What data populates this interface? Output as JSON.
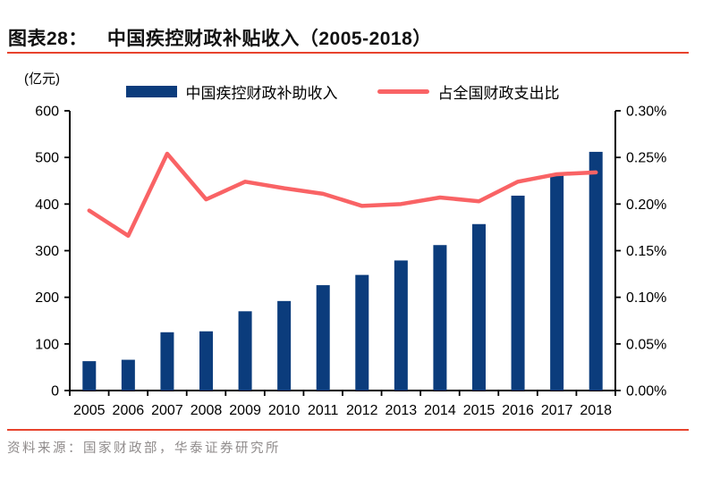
{
  "header": {
    "label": "图表28：",
    "title": "中国疾控财政补贴收入（2005-2018）"
  },
  "chart": {
    "unit_label": "(亿元)",
    "legend": [
      {
        "label": "中国疾控财政补助收入",
        "swatch": "bar"
      },
      {
        "label": "占全国财政支出比",
        "swatch": "line"
      }
    ]
  },
  "source": "资料来源：国家财政部，华泰证券研究所",
  "colors": {
    "bar": "#0b3c7c",
    "line": "#f96365",
    "rule": "#e8432d",
    "axis": "#000000",
    "tick_text": "#000000",
    "source_text": "#8f8b8b"
  },
  "chart_data": {
    "type": "bar+line",
    "title": "中国疾控财政补贴收入（2005-2018）",
    "categories": [
      "2005",
      "2006",
      "2007",
      "2008",
      "2009",
      "2010",
      "2011",
      "2012",
      "2013",
      "2014",
      "2015",
      "2016",
      "2017",
      "2018"
    ],
    "series": [
      {
        "name": "中国疾控财政补助收入",
        "type": "bar",
        "yaxis": "left",
        "unit": "亿元",
        "values": [
          63,
          66,
          125,
          127,
          170,
          192,
          226,
          248,
          279,
          312,
          357,
          418,
          465,
          512
        ]
      },
      {
        "name": "占全国财政支出比",
        "type": "line",
        "yaxis": "right",
        "unit": "%",
        "values": [
          0.193,
          0.166,
          0.254,
          0.205,
          0.224,
          0.217,
          0.211,
          0.198,
          0.2,
          0.207,
          0.203,
          0.224,
          0.232,
          0.234
        ]
      }
    ],
    "left_axis": {
      "label": "(亿元)",
      "min": 0,
      "max": 600,
      "step": 100
    },
    "right_axis": {
      "min": 0,
      "max": 0.3,
      "step": 0.05,
      "tick_format": "0.00%"
    },
    "legend_position": "top",
    "grid": false
  }
}
